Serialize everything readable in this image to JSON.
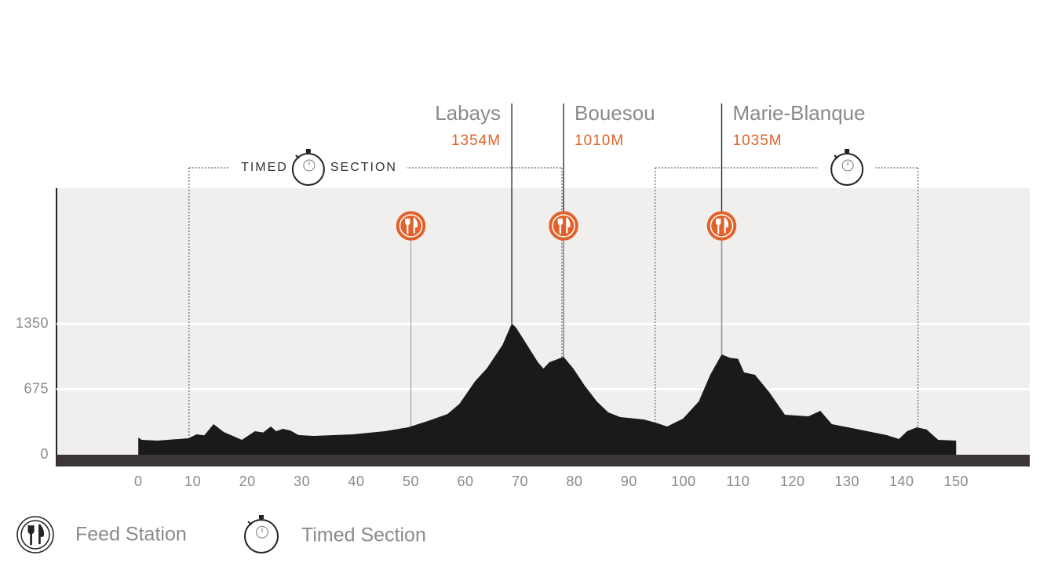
{
  "chart_data": {
    "type": "area",
    "profile": {
      "km": [
        0,
        0.6,
        3.5,
        9.2,
        10.7,
        12.1,
        13.8,
        15.7,
        19,
        21.4,
        22.9,
        24.3,
        25.3,
        26.5,
        27.9,
        29.4,
        32.2,
        39.4,
        45.2,
        49.5,
        53.1,
        56.7,
        58.9,
        61.8,
        63.9,
        66.8,
        68.5,
        69.3,
        70.4,
        73.3,
        74.3,
        75.4,
        78,
        79.8,
        81.9,
        84.1,
        86.2,
        88.4,
        92.7,
        94.9,
        97,
        99.9,
        102.8,
        104.9,
        107,
        108.5,
        110,
        111.1,
        113.1,
        115.7,
        118.6,
        122.9,
        125.1,
        127.2,
        131.6,
        137.3,
        139.5,
        141,
        142.8,
        144.6,
        146.7,
        150
      ],
      "elevation": [
        178,
        154,
        146,
        170,
        210,
        200,
        315,
        234,
        154,
        243,
        230,
        291,
        243,
        267,
        250,
        202,
        194,
        210,
        243,
        283,
        348,
        420,
        525,
        760,
        889,
        1132,
        1354,
        1310,
        1213,
        954,
        889,
        954,
        1010,
        889,
        711,
        550,
        437,
        388,
        364,
        331,
        291,
        372,
        550,
        825,
        1035,
        1000,
        990,
        849,
        825,
        647,
        412,
        396,
        453,
        315,
        267,
        202,
        162,
        243,
        283,
        260,
        154,
        146
      ]
    },
    "peaks": [
      {
        "name": "Labays",
        "km": 68.5,
        "value": 1354,
        "label": "1354M"
      },
      {
        "name": "Bouesou",
        "km": 78,
        "value": 1010,
        "label": "1010M"
      },
      {
        "name": "Marie-Blanque",
        "km": 107,
        "value": 1035,
        "label": "1035M"
      }
    ],
    "feed_stations": [
      50,
      78,
      107
    ],
    "timed_sections": [
      {
        "start": 9.3,
        "end": 77.7,
        "label": [
          "TIMED",
          "SECTION"
        ]
      },
      {
        "start": 94.8,
        "end": 143
      }
    ],
    "xlim": [
      -15,
      163.5
    ],
    "xticks": [
      0,
      10,
      20,
      30,
      40,
      50,
      60,
      70,
      80,
      90,
      100,
      110,
      120,
      130,
      140,
      150
    ],
    "ylim": [
      0,
      2750
    ],
    "yticks": [
      0,
      675,
      1350
    ],
    "grid": true,
    "color": "#1b1a1a",
    "legend": [
      "Feed Station",
      "Timed Section"
    ]
  }
}
